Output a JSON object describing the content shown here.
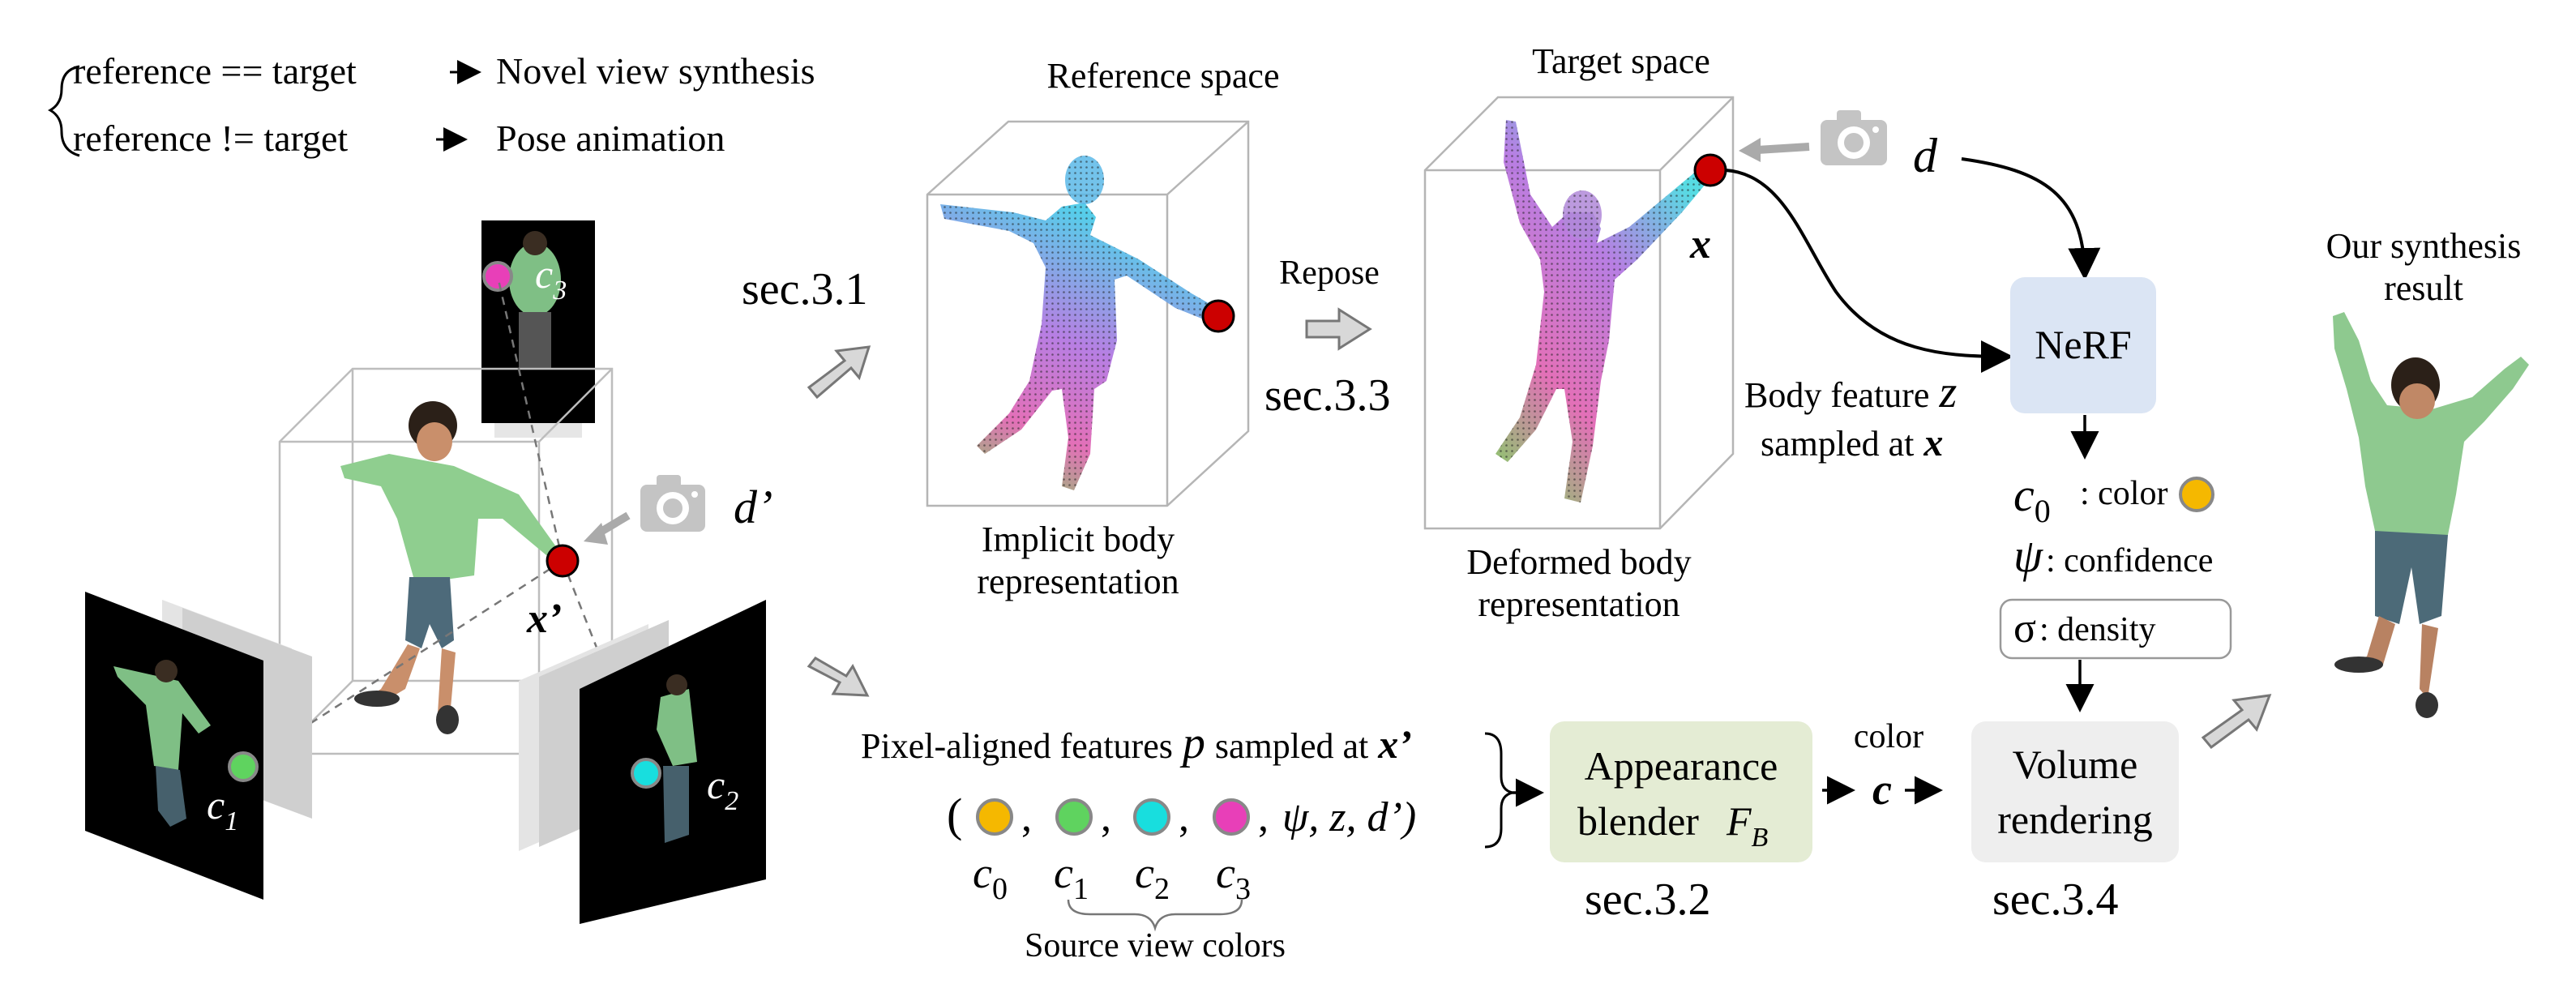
{
  "legend": {
    "line1_left": "reference == target",
    "line1_right": "Novel view synthesis",
    "line2_left": "reference != target",
    "line2_right": "Pose animation"
  },
  "sections": {
    "s31": "sec.3.1",
    "s32": "sec.3.2",
    "s33": "sec.3.3",
    "s34": "sec.3.4"
  },
  "reference": {
    "title": "Reference space",
    "caption_line1": "Implicit body",
    "caption_line2": "representation"
  },
  "target": {
    "title": "Target space",
    "caption_line1": "Deformed body",
    "caption_line2": "representation"
  },
  "repose_label": "Repose",
  "symbols": {
    "x": "x",
    "x_prime": "x’",
    "d": "d",
    "d_prime": "d’",
    "c1": "c",
    "c1_sub": "1",
    "c2": "c",
    "c2_sub": "2",
    "c3": "c",
    "c3_sub": "3"
  },
  "nerf": {
    "label": "NeRF",
    "body_feature_line1": "Body feature",
    "body_feature_symbol": "z",
    "body_feature_line2": "sampled at",
    "sampled_symbol": "x",
    "out_color_sym": "c",
    "out_color_sub": "0",
    "out_color_text": ": color",
    "out_conf_sym": "ψ",
    "out_conf_text": ": confidence",
    "out_density_sym": "σ",
    "out_density_text": " : density"
  },
  "pixel": {
    "line": "Pixel-aligned features",
    "p_sym": "p",
    "sampled_at": "sampled at",
    "x_prime": "x’",
    "open": "(",
    "comma": ",",
    "tail": "ψ, z, d’)",
    "labels": [
      {
        "sym": "c",
        "sub": "0"
      },
      {
        "sym": "c",
        "sub": "1"
      },
      {
        "sym": "c",
        "sub": "2"
      },
      {
        "sym": "c",
        "sub": "3"
      }
    ],
    "brace_caption": "Source view colors"
  },
  "blender": {
    "line1": "Appearance",
    "line2": "blender",
    "sym": "F",
    "sub": "B"
  },
  "color_arrow": {
    "label": "color",
    "sym": "c"
  },
  "volume": {
    "line1": "Volume",
    "line2": "rendering"
  },
  "result": {
    "line1": "Our synthesis",
    "line2": "result"
  },
  "colors": {
    "red_point": "#cc0000",
    "c0_orange": "#f5b800",
    "c1_green": "#5fd35f",
    "c2_cyan": "#18dede",
    "c3_magenta": "#e83fb8",
    "nerf_box": "#dbe5f4",
    "blender_box": "#e4ecd4",
    "volume_box": "#eeeeee",
    "gray_arrow": "#c8c8c8"
  }
}
